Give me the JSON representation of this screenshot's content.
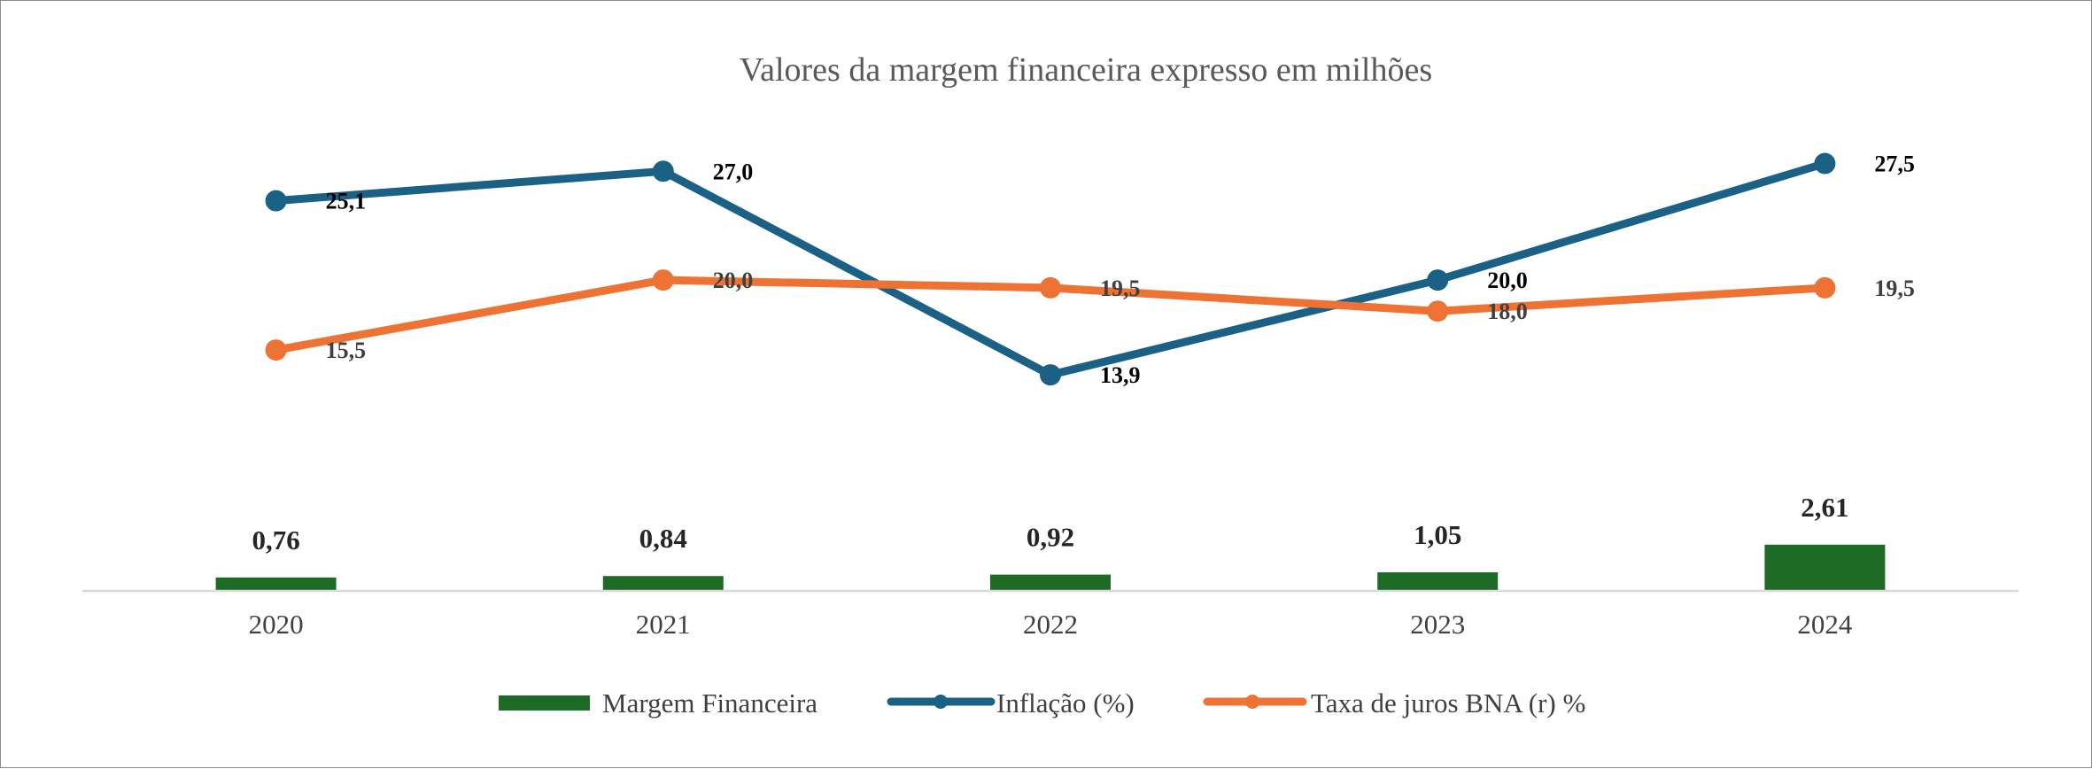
{
  "chart_data": {
    "type": "bar",
    "title": "Valores da margem financeira expresso em milhões",
    "categories": [
      "2020",
      "2021",
      "2022",
      "2023",
      "2024"
    ],
    "series": [
      {
        "name": "Margem Financeira",
        "kind": "bar",
        "color": "#1e6b26",
        "values": [
          0.76,
          0.84,
          0.92,
          1.05,
          2.61
        ],
        "labels": [
          "0,76",
          "0,84",
          "0,92",
          "1,05",
          "2,61"
        ]
      },
      {
        "name": "Inflação (%)",
        "kind": "line",
        "color": "#1b6185",
        "values": [
          25.1,
          27.0,
          13.9,
          20.0,
          27.5
        ],
        "labels": [
          "25,1",
          "27,0",
          "13,9",
          "20,0",
          "27,5"
        ]
      },
      {
        "name": "Taxa de juros BNA (r) %",
        "kind": "line",
        "color": "#ed7233",
        "values": [
          15.5,
          20.0,
          19.5,
          18.0,
          19.5
        ],
        "labels": [
          "15,5",
          "20,0",
          "19,5",
          "18,0",
          "19,5"
        ]
      }
    ],
    "bar_axis_range": [
      0,
      15
    ],
    "line_axis_range": [
      0,
      39.5
    ],
    "grid": false,
    "legend_position": "bottom"
  }
}
